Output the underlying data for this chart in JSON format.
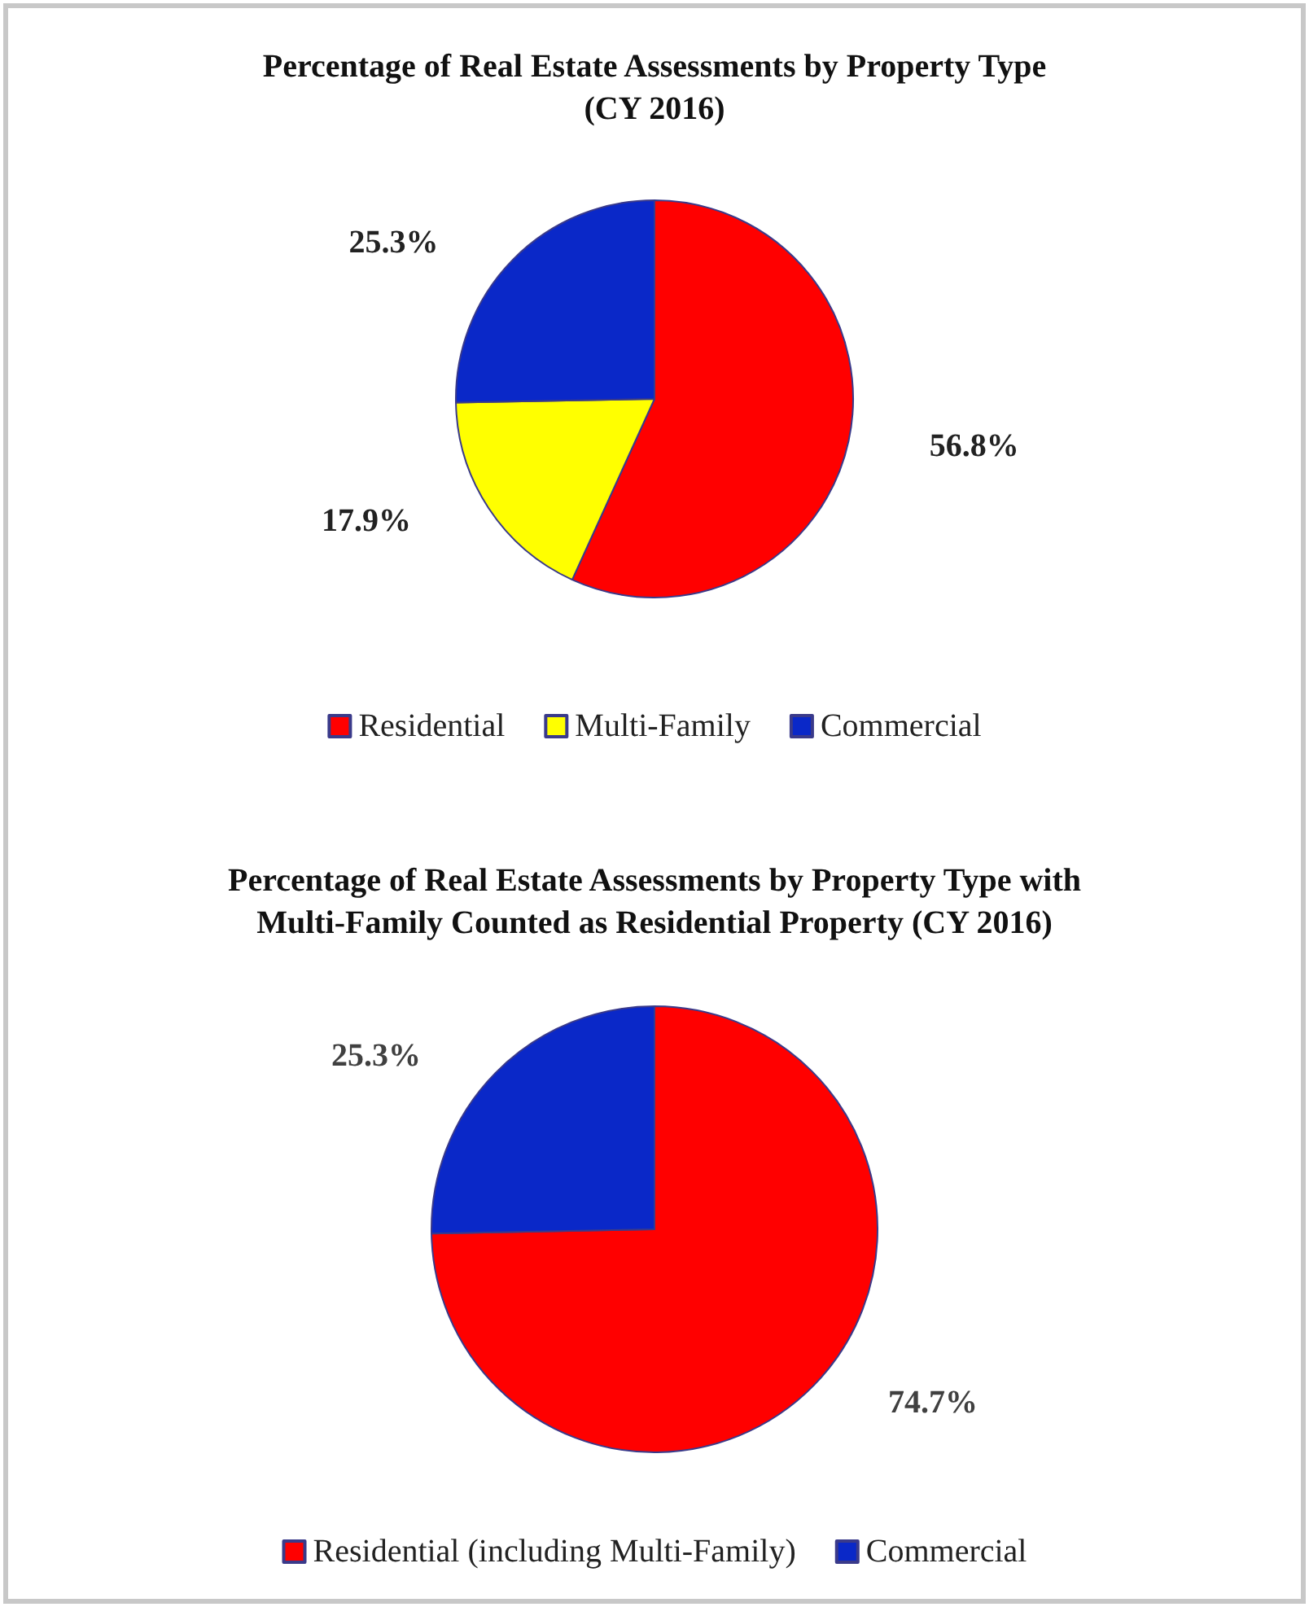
{
  "chart_data": [
    {
      "type": "pie",
      "title": "Percentage of Real Estate Assessments by Property Type\n(CY 2016)",
      "categories": [
        "Residential",
        "Multi-Family",
        "Commercial"
      ],
      "values": [
        56.8,
        17.9,
        25.3
      ],
      "colors": [
        "#ff0000",
        "#ffff00",
        "#0a28c8"
      ],
      "value_labels": [
        "56.8%",
        "17.9%",
        "25.3%"
      ],
      "legend": "bottom"
    },
    {
      "type": "pie",
      "title": "Percentage of Real Estate Assessments by Property Type with\nMulti-Family Counted as Residential Property (CY 2016)",
      "categories": [
        "Residential (including Multi-Family)",
        "Commercial"
      ],
      "values": [
        74.7,
        25.3
      ],
      "colors": [
        "#ff0000",
        "#0a28c8"
      ],
      "value_labels": [
        "74.7%",
        "25.3%"
      ],
      "legend": "bottom"
    }
  ]
}
